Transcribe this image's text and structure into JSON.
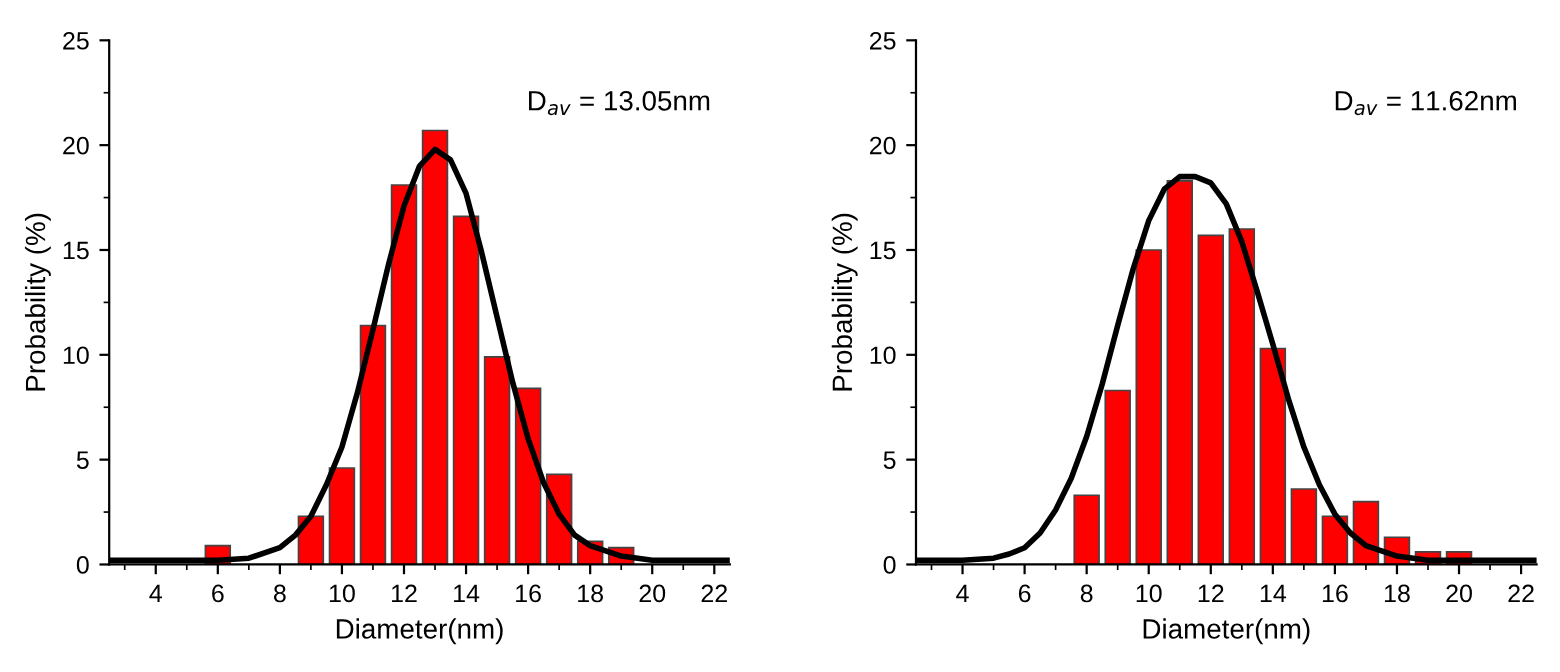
{
  "chart_data": [
    {
      "type": "bar",
      "xlabel": "Diameter(nm)",
      "ylabel": "Probability (%)",
      "annotations": [
        "D$_{av}$ = 13.05nm"
      ],
      "xlim": [
        2.5,
        22.5
      ],
      "xticks": [
        4,
        6,
        8,
        10,
        12,
        14,
        16,
        18,
        20,
        22
      ],
      "ylim": [
        0,
        25
      ],
      "yticks": [
        0,
        5,
        10,
        15,
        20,
        25
      ],
      "grid": false,
      "series": [
        {
          "color": "#ff0000",
          "x": [
            6,
            9,
            10,
            11,
            12,
            13,
            14,
            15,
            16,
            17,
            18,
            19
          ],
          "values": [
            0.9,
            2.3,
            4.6,
            11.4,
            18.1,
            20.7,
            16.6,
            9.9,
            8.4,
            4.3,
            1.1,
            0.8
          ]
        },
        {
          "type": "line",
          "color": "#000000",
          "x": [
            2.5,
            4,
            5,
            6,
            7,
            8,
            8.5,
            9,
            9.5,
            10,
            10.5,
            11,
            11.5,
            12,
            12.5,
            13,
            13.5,
            14,
            14.5,
            15,
            15.5,
            16,
            16.5,
            17,
            17.5,
            18,
            19,
            20,
            21,
            22.5
          ],
          "values": [
            0.2,
            0.2,
            0.2,
            0.2,
            0.3,
            0.8,
            1.4,
            2.3,
            3.8,
            5.6,
            8.2,
            11.2,
            14.3,
            17.1,
            19.0,
            19.8,
            19.3,
            17.7,
            14.9,
            11.8,
            8.7,
            6.0,
            3.9,
            2.4,
            1.4,
            0.9,
            0.4,
            0.2,
            0.2,
            0.2
          ]
        }
      ]
    },
    {
      "type": "bar",
      "xlabel": "Diameter(nm)",
      "ylabel": "Probability (%)",
      "annotations": [
        "D$_{av}$ = 11.62nm"
      ],
      "xlim": [
        2.5,
        22.5
      ],
      "xticks": [
        4,
        6,
        8,
        10,
        12,
        14,
        16,
        18,
        20,
        22
      ],
      "ylim": [
        0,
        25
      ],
      "yticks": [
        0,
        5,
        10,
        15,
        20,
        25
      ],
      "grid": false,
      "series": [
        {
          "color": "#ff0000",
          "x": [
            8,
            9,
            10,
            11,
            12,
            13,
            14,
            15,
            16,
            17,
            18,
            19,
            20
          ],
          "values": [
            3.3,
            8.3,
            15.0,
            18.3,
            15.7,
            16.0,
            10.3,
            3.6,
            2.3,
            3.0,
            1.3,
            0.6,
            0.6
          ]
        },
        {
          "type": "line",
          "color": "#000000",
          "x": [
            2.5,
            4,
            5,
            5.5,
            6,
            6.5,
            7,
            7.5,
            8,
            8.5,
            9,
            9.5,
            10,
            10.5,
            11,
            11.5,
            12,
            12.5,
            13,
            13.5,
            14,
            14.5,
            15,
            15.5,
            16,
            16.5,
            17,
            18,
            19,
            20,
            22.5
          ],
          "values": [
            0.2,
            0.2,
            0.3,
            0.5,
            0.8,
            1.5,
            2.6,
            4.1,
            6.1,
            8.6,
            11.4,
            14.1,
            16.4,
            17.9,
            18.5,
            18.5,
            18.2,
            17.2,
            15.4,
            13.0,
            10.5,
            7.9,
            5.6,
            3.8,
            2.4,
            1.5,
            0.9,
            0.4,
            0.2,
            0.2,
            0.2
          ]
        }
      ]
    }
  ]
}
